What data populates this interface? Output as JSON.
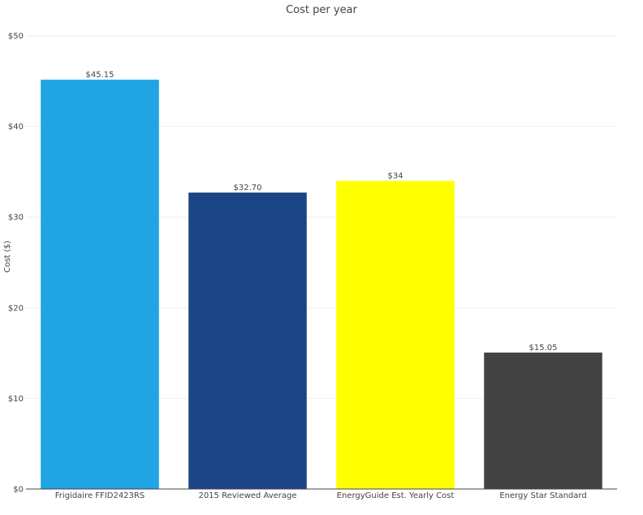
{
  "chart_data": {
    "type": "bar",
    "title": "Cost per year",
    "xlabel": "",
    "ylabel": "Cost ($)",
    "ylim": [
      0,
      50
    ],
    "yticks": [
      0,
      10,
      20,
      30,
      40,
      50
    ],
    "ytick_labels": [
      "$0",
      "$10",
      "$20",
      "$30",
      "$40",
      "$50"
    ],
    "grid": true,
    "legend": "none",
    "categories": [
      "Frigidaire FFID2423RS",
      "2015 Reviewed Average",
      "EnergyGuide Est. Yearly Cost",
      "Energy Star Standard"
    ],
    "values": [
      45.15,
      32.7,
      34,
      15.05
    ],
    "data_labels": [
      "$45.15",
      "$32.70",
      "$34",
      "$15.05"
    ],
    "colors": [
      "#21a4e3",
      "#1c4587",
      "#ffff00",
      "#434343"
    ]
  }
}
